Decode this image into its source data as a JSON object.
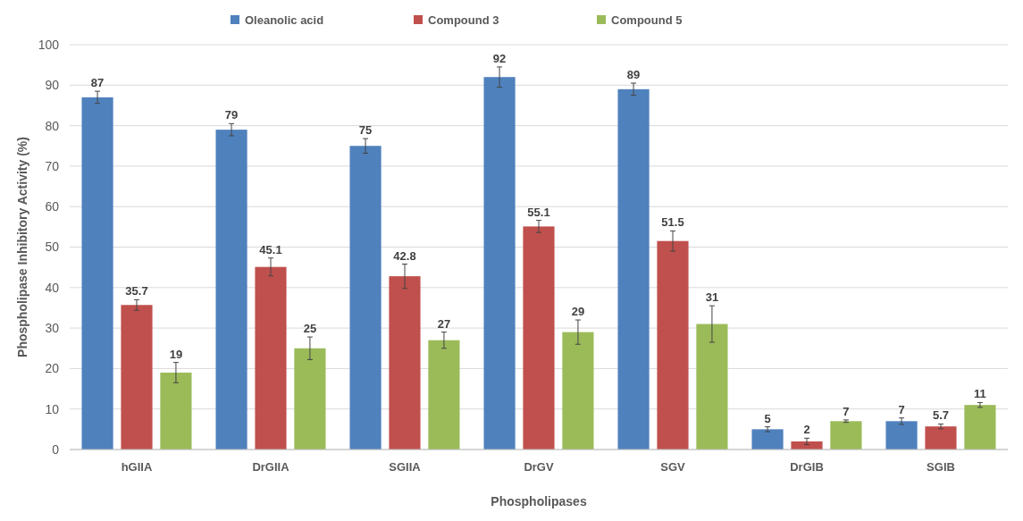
{
  "chart_data": {
    "type": "bar",
    "xlabel": "Phospholipases",
    "ylabel": "Phospholipase Inhibitory Activity (%)",
    "categories": [
      "hGIIA",
      "DrGIIA",
      "SGIIA",
      "DrGV",
      "SGV",
      "DrGIB",
      "SGIB"
    ],
    "series": [
      {
        "name": "Oleanolic acid",
        "color": "#4f81bd",
        "values": [
          87,
          79,
          75,
          92,
          89,
          5,
          7
        ],
        "errors": [
          1.5,
          1.5,
          1.8,
          2.5,
          1.5,
          0.6,
          0.8
        ]
      },
      {
        "name": "Compound 3",
        "color": "#c0504d",
        "values": [
          35.7,
          45.1,
          42.8,
          55.1,
          51.5,
          2,
          5.7
        ],
        "errors": [
          1.3,
          2.2,
          3,
          1.5,
          2.5,
          0.8,
          0.6
        ]
      },
      {
        "name": "Compound 5",
        "color": "#9bbb59",
        "values": [
          19,
          25,
          27,
          29,
          31,
          7,
          11
        ],
        "errors": [
          2.5,
          2.8,
          2,
          3,
          4.5,
          0.3,
          0.6
        ]
      }
    ],
    "ylim": [
      0,
      100
    ],
    "yticks": [
      0,
      10,
      20,
      30,
      40,
      50,
      60,
      70,
      80,
      90,
      100
    ],
    "grid": "y",
    "legend": "top",
    "data_labels": true
  }
}
